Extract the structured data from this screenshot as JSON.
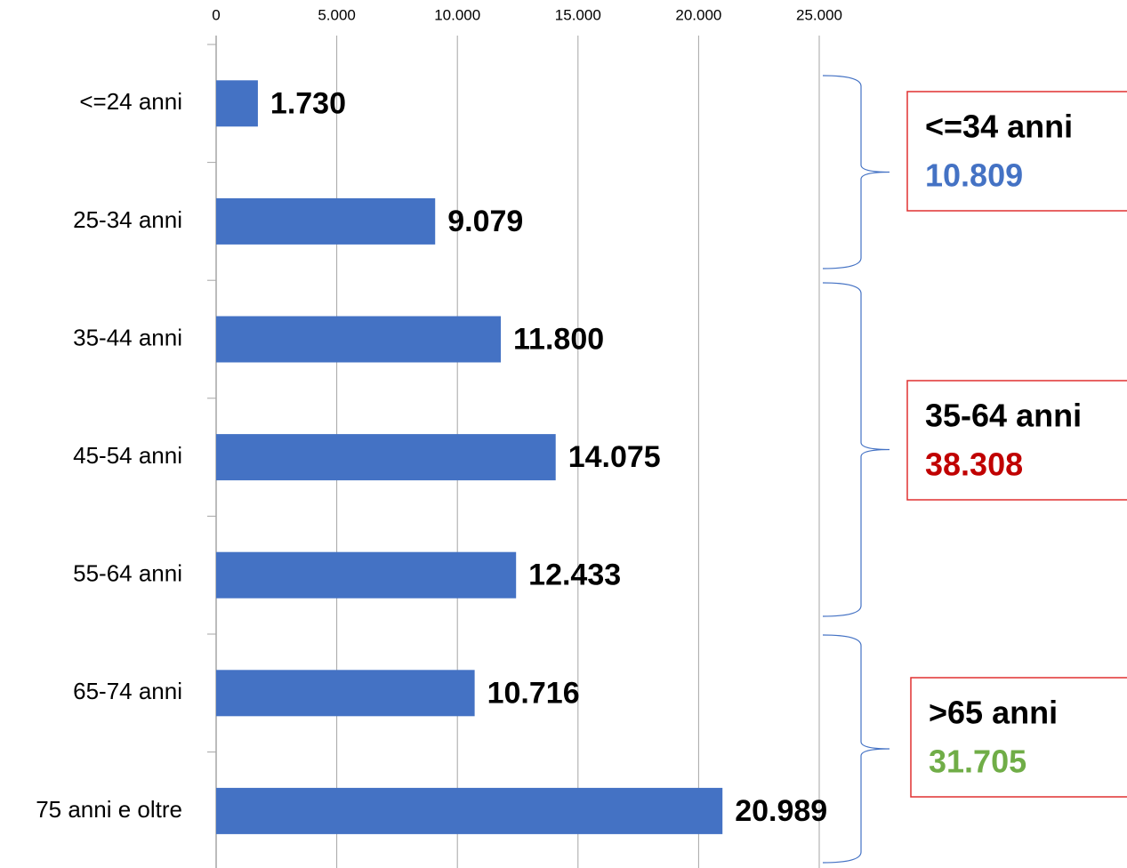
{
  "chart_data": {
    "type": "bar",
    "orientation": "horizontal",
    "categories": [
      "<=24 anni",
      "25-34 anni",
      "35-44 anni",
      "45-54 anni",
      "55-64 anni",
      "65-74 anni",
      "75 anni e oltre"
    ],
    "values": [
      1730,
      9079,
      11800,
      14075,
      12433,
      10716,
      20989
    ],
    "value_labels": [
      "1.730",
      "9.079",
      "11.800",
      "14.075",
      "12.433",
      "10.716",
      "20.989"
    ],
    "color": "#4472c4",
    "xlim": [
      0,
      25000
    ],
    "xticks": [
      0,
      {
        "value": 5000,
        "label": "5.000"
      },
      {
        "value": 10000,
        "label": "10.000"
      },
      {
        "value": 15000,
        "label": "15.000"
      },
      {
        "value": 20000,
        "label": "20.000"
      },
      {
        "value": 25000,
        "label": "25.000"
      }
    ],
    "grid": true,
    "annotations": [
      {
        "text": "<=34 anni",
        "total": "10.809",
        "color": "#4472c4"
      },
      {
        "text": "35-64 anni",
        "total": "38.308",
        "color": "#c00000"
      },
      {
        "text": ">65 anni",
        "total": "31.705",
        "color": "#70ad47"
      }
    ]
  }
}
